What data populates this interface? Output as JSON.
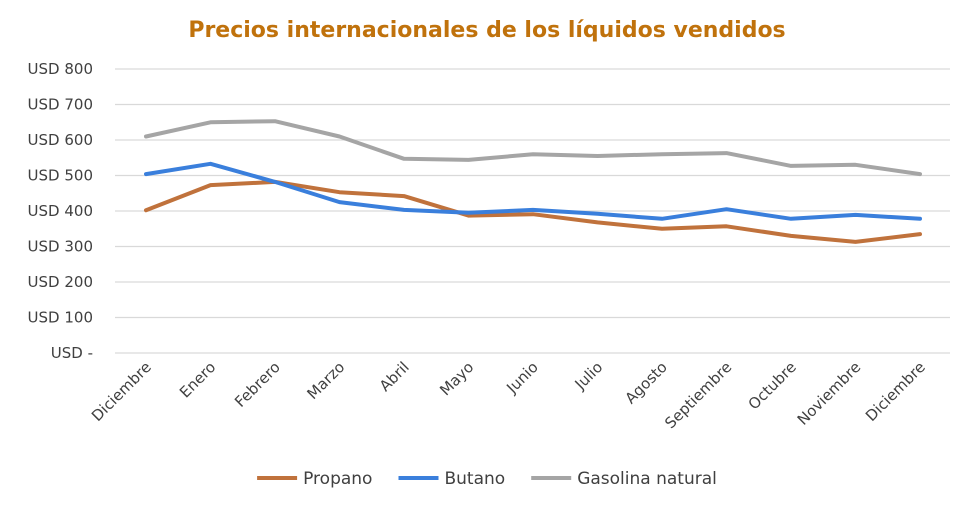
{
  "chart_data": {
    "type": "line",
    "title": "Precios internacionales de los líquidos vendidos",
    "xlabel": "",
    "ylabel": "",
    "categories": [
      "Diciembre",
      "Enero",
      "Febrero",
      "Marzo",
      "Abril",
      "Mayo",
      "Junio",
      "Julio",
      "Agosto",
      "Septiembre",
      "Octubre",
      "Noviembre",
      "Diciembre"
    ],
    "ylim": [
      0,
      800
    ],
    "yticks": [
      0,
      100,
      200,
      300,
      400,
      500,
      600,
      700,
      800
    ],
    "ytick_labels": [
      "USD -",
      "USD 100",
      "USD 200",
      "USD 300",
      "USD 400",
      "USD 500",
      "USD 600",
      "USD 700",
      "USD 800"
    ],
    "grid": true,
    "legend_position": "bottom",
    "series": [
      {
        "name": "Propano",
        "color": "#c0723c",
        "values": [
          402,
          473,
          482,
          453,
          442,
          387,
          391,
          368,
          350,
          357,
          330,
          313,
          335
        ]
      },
      {
        "name": "Butano",
        "color": "#3a7fdc",
        "values": [
          504,
          533,
          482,
          425,
          403,
          395,
          403,
          392,
          378,
          405,
          378,
          389,
          378
        ]
      },
      {
        "name": "Gasolina natural",
        "color": "#a5a5a5",
        "values": [
          610,
          650,
          653,
          610,
          547,
          544,
          560,
          555,
          560,
          563,
          527,
          530,
          504
        ]
      }
    ]
  }
}
